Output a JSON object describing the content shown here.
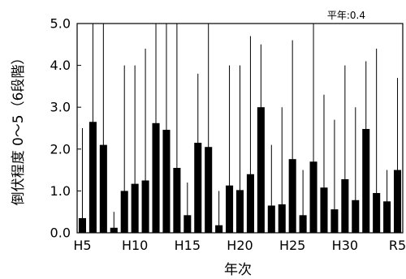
{
  "chart_data": {
    "type": "bar",
    "xlabel": "年次",
    "ylabel": "倒伏程度 0～5（6段階）",
    "annotation": "平年:0.4",
    "ylim": [
      0,
      5
    ],
    "yticks": [
      "0.0",
      "1.0",
      "2.0",
      "3.0",
      "4.0",
      "5.0"
    ],
    "xtick_labels": [
      {
        "at": 0,
        "label": "H5"
      },
      {
        "at": 5,
        "label": "H10"
      },
      {
        "at": 10,
        "label": "H15"
      },
      {
        "at": 15,
        "label": "H20"
      },
      {
        "at": 20,
        "label": "H25"
      },
      {
        "at": 25,
        "label": "H30"
      },
      {
        "at": 30,
        "label": "R5"
      }
    ],
    "grid": false,
    "series": [
      {
        "values": [
          0.35,
          2.65,
          2.1,
          0.12,
          1.0,
          1.17,
          1.25,
          2.62,
          2.46,
          1.55,
          0.42,
          2.15,
          2.05,
          0.18,
          1.13,
          1.02,
          1.4,
          3.0,
          0.65,
          0.68,
          1.76,
          0.42,
          1.7,
          1.08,
          0.56,
          1.28,
          0.78,
          2.48,
          0.95,
          0.75,
          1.5
        ],
        "error_min": [
          0.0,
          0.0,
          0.0,
          0.0,
          0.0,
          0.0,
          0.0,
          0.0,
          0.0,
          0.0,
          0.0,
          0.0,
          0.0,
          0.0,
          0.0,
          0.0,
          0.0,
          0.3,
          0.0,
          0.0,
          0.0,
          0.0,
          0.0,
          0.0,
          0.0,
          0.0,
          0.0,
          0.0,
          0.0,
          0.0,
          0.0
        ],
        "error_max": [
          2.5,
          5.0,
          5.0,
          0.5,
          4.0,
          4.0,
          4.4,
          5.0,
          5.0,
          5.0,
          1.2,
          3.8,
          5.0,
          1.0,
          4.0,
          4.0,
          4.7,
          4.5,
          2.1,
          3.0,
          4.6,
          1.5,
          5.0,
          3.3,
          2.7,
          4.0,
          3.0,
          4.1,
          4.4,
          1.5,
          3.7
        ]
      }
    ]
  }
}
